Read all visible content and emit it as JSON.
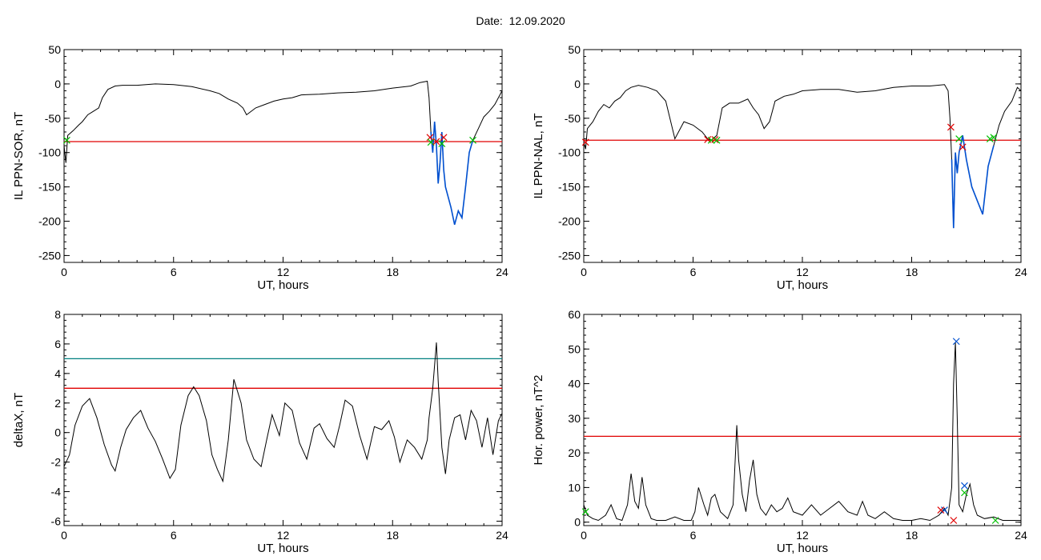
{
  "title": "Date:  12.09.2020",
  "colors": {
    "axis": "#000000",
    "trace": "#000000",
    "threshold": "#e00000",
    "upper_threshold": "#008080",
    "highlight": "#0050d0",
    "marker_red": "#e00000",
    "marker_green": "#00c000",
    "marker_blue": "#0050d0"
  },
  "chart_data": [
    {
      "type": "line",
      "ylabel": "IL PPN-SOR, nT",
      "xlabel": "UT, hours",
      "xlim": [
        0,
        24
      ],
      "ylim": [
        -260,
        50
      ],
      "xticks": [
        0,
        6,
        12,
        18,
        24
      ],
      "yticks": [
        50,
        0,
        -50,
        -100,
        -150,
        -200,
        -250
      ],
      "thresholds": [
        -84
      ],
      "highlight_range": [
        20.1,
        22.4
      ],
      "series": [
        {
          "x": [
            0,
            0.1,
            0.2,
            0.5,
            0.8,
            1.0,
            1.3,
            1.6,
            1.9,
            2.1,
            2.4,
            2.8,
            3.2,
            4,
            5,
            6,
            7,
            8,
            8.5,
            9,
            9.5,
            9.8,
            10.0,
            10.5,
            11,
            11.5,
            12,
            12.5,
            13,
            14,
            15,
            16,
            17,
            18,
            19,
            19.5,
            19.9,
            20.0,
            20.1,
            20.2,
            20.3,
            20.4,
            20.5,
            20.6,
            20.7,
            20.8,
            20.9,
            21.0,
            21.2,
            21.4,
            21.6,
            21.8,
            22.0,
            22.2,
            22.4,
            22.7,
            23,
            23.3,
            23.6,
            24
          ],
          "y": [
            -90,
            -115,
            -75,
            -68,
            -60,
            -55,
            -45,
            -40,
            -35,
            -20,
            -8,
            -3,
            -2,
            -2,
            0,
            -1,
            -4,
            -10,
            -14,
            -22,
            -28,
            -35,
            -45,
            -35,
            -30,
            -25,
            -22,
            -20,
            -16,
            -15,
            -13,
            -12,
            -10,
            -6,
            -3,
            2,
            4,
            -20,
            -70,
            -100,
            -55,
            -90,
            -145,
            -115,
            -70,
            -125,
            -150,
            -160,
            -180,
            -205,
            -185,
            -195,
            -150,
            -100,
            -82,
            -65,
            -48,
            -40,
            -30,
            -10
          ]
        }
      ],
      "markers": [
        {
          "x": 0.15,
          "y": -82,
          "color": "green"
        },
        {
          "x": 20.05,
          "y": -78,
          "color": "red"
        },
        {
          "x": 20.1,
          "y": -85,
          "color": "green"
        },
        {
          "x": 20.4,
          "y": -84,
          "color": "red"
        },
        {
          "x": 20.7,
          "y": -87,
          "color": "green"
        },
        {
          "x": 20.8,
          "y": -78,
          "color": "red"
        },
        {
          "x": 22.4,
          "y": -82,
          "color": "green"
        }
      ]
    },
    {
      "type": "line",
      "ylabel": "IL PPN-NAL, nT",
      "xlabel": "UT, hours",
      "xlim": [
        0,
        24
      ],
      "ylim": [
        -260,
        50
      ],
      "xticks": [
        0,
        6,
        12,
        18,
        24
      ],
      "yticks": [
        50,
        0,
        -50,
        -100,
        -150,
        -200,
        -250
      ],
      "thresholds": [
        -82
      ],
      "highlight_range": [
        20.2,
        22.5
      ],
      "series": [
        {
          "x": [
            0,
            0.1,
            0.2,
            0.5,
            0.8,
            1.1,
            1.4,
            1.7,
            2.0,
            2.3,
            2.6,
            3.0,
            3.5,
            4.0,
            4.5,
            5.0,
            5.5,
            6.0,
            6.5,
            6.8,
            7.0,
            7.3,
            7.6,
            8.0,
            8.5,
            9.0,
            9.3,
            9.6,
            9.9,
            10.2,
            10.5,
            11.0,
            11.5,
            12,
            13,
            14,
            15,
            16,
            17,
            18,
            19,
            19.8,
            20.0,
            20.1,
            20.2,
            20.3,
            20.4,
            20.5,
            20.6,
            20.8,
            21.0,
            21.3,
            21.6,
            21.9,
            22.2,
            22.5,
            22.8,
            23.1,
            23.5,
            23.8,
            24
          ],
          "y": [
            -85,
            -95,
            -65,
            -55,
            -40,
            -30,
            -35,
            -25,
            -20,
            -10,
            -5,
            -2,
            -5,
            -10,
            -25,
            -80,
            -55,
            -60,
            -70,
            -80,
            -82,
            -75,
            -35,
            -28,
            -28,
            -22,
            -35,
            -45,
            -65,
            -55,
            -25,
            -18,
            -15,
            -10,
            -8,
            -8,
            -12,
            -10,
            -5,
            -3,
            -3,
            -1,
            -10,
            -50,
            -110,
            -210,
            -100,
            -130,
            -100,
            -75,
            -110,
            -150,
            -170,
            -190,
            -120,
            -90,
            -60,
            -40,
            -25,
            -5,
            -10
          ]
        }
      ],
      "markers": [
        {
          "x": 0.1,
          "y": -85,
          "color": "red"
        },
        {
          "x": 6.8,
          "y": -81,
          "color": "red"
        },
        {
          "x": 7.0,
          "y": -82,
          "color": "green"
        },
        {
          "x": 7.2,
          "y": -81,
          "color": "red"
        },
        {
          "x": 7.3,
          "y": -82,
          "color": "green"
        },
        {
          "x": 20.15,
          "y": -63,
          "color": "red"
        },
        {
          "x": 20.6,
          "y": -80,
          "color": "green"
        },
        {
          "x": 20.8,
          "y": -92,
          "color": "red"
        },
        {
          "x": 22.3,
          "y": -80,
          "color": "green"
        },
        {
          "x": 22.5,
          "y": -78,
          "color": "green"
        }
      ]
    },
    {
      "type": "line",
      "ylabel": "deltaX, nT",
      "xlabel": "UT, hours",
      "xlim": [
        0,
        24
      ],
      "ylim": [
        -6.3,
        8
      ],
      "xticks": [
        0,
        6,
        12,
        18,
        24
      ],
      "yticks": [
        8,
        6,
        4,
        2,
        0,
        -2,
        -4,
        -6
      ],
      "thresholds": [
        5,
        3
      ],
      "series": [
        {
          "x": [
            0,
            0.3,
            0.6,
            1.0,
            1.4,
            1.8,
            2.2,
            2.6,
            2.8,
            3.1,
            3.4,
            3.8,
            4.2,
            4.6,
            5.0,
            5.4,
            5.8,
            6.1,
            6.4,
            6.8,
            7.1,
            7.4,
            7.8,
            8.1,
            8.4,
            8.7,
            9.0,
            9.3,
            9.7,
            10.0,
            10.4,
            10.8,
            11.1,
            11.4,
            11.8,
            12.1,
            12.5,
            12.9,
            13.3,
            13.7,
            14.0,
            14.4,
            14.8,
            15.1,
            15.4,
            15.8,
            16.2,
            16.6,
            17.0,
            17.4,
            17.8,
            18.1,
            18.4,
            18.8,
            19.2,
            19.6,
            19.9,
            20.0,
            20.2,
            20.4,
            20.5,
            20.7,
            20.9,
            21.1,
            21.4,
            21.7,
            22.0,
            22.3,
            22.6,
            22.9,
            23.2,
            23.5,
            23.8,
            24
          ],
          "y": [
            -2.3,
            -1.5,
            0.5,
            1.8,
            2.3,
            1.0,
            -0.8,
            -2.2,
            -2.6,
            -1.0,
            0.2,
            1.0,
            1.5,
            0.3,
            -0.6,
            -1.8,
            -3.1,
            -2.5,
            0.5,
            2.5,
            3.1,
            2.5,
            0.8,
            -1.5,
            -2.5,
            -3.3,
            -0.5,
            3.6,
            2.0,
            -0.5,
            -1.8,
            -2.3,
            -0.5,
            1.2,
            -0.2,
            2.0,
            1.5,
            -0.7,
            -1.8,
            0.3,
            0.6,
            -0.4,
            -1.0,
            0.5,
            2.2,
            1.8,
            -0.2,
            -1.8,
            0.4,
            0.2,
            0.8,
            -0.3,
            -2.0,
            -0.5,
            -1.0,
            -1.8,
            -0.5,
            1.0,
            3.0,
            6.1,
            3.5,
            -1.0,
            -2.8,
            -0.5,
            1.0,
            1.2,
            -0.5,
            1.5,
            0.8,
            -1.0,
            1.0,
            -1.5,
            0.8,
            1.3
          ]
        }
      ],
      "markers": []
    },
    {
      "type": "line",
      "ylabel": "Hor. power, nT^2",
      "xlabel": "UT, hours",
      "xlim": [
        0,
        24
      ],
      "ylim": [
        -1,
        60
      ],
      "xticks": [
        0,
        6,
        12,
        18,
        24
      ],
      "yticks": [
        60,
        50,
        40,
        30,
        20,
        10,
        0
      ],
      "thresholds": [
        24.8
      ],
      "series": [
        {
          "x": [
            0,
            0.2,
            0.5,
            0.8,
            1.2,
            1.5,
            1.8,
            2.1,
            2.4,
            2.6,
            2.8,
            3.0,
            3.2,
            3.4,
            3.7,
            4.0,
            4.5,
            5.0,
            5.5,
            5.9,
            6.1,
            6.3,
            6.6,
            6.8,
            7.0,
            7.2,
            7.5,
            7.9,
            8.2,
            8.4,
            8.5,
            8.7,
            8.9,
            9.1,
            9.3,
            9.5,
            9.7,
            10.0,
            10.3,
            10.6,
            10.9,
            11.2,
            11.5,
            12.0,
            12.5,
            13.0,
            13.5,
            14.0,
            14.5,
            15.0,
            15.3,
            15.6,
            16.0,
            16.5,
            17.0,
            17.5,
            18.0,
            18.5,
            19.0,
            19.5,
            19.8,
            20.0,
            20.2,
            20.3,
            20.4,
            20.5,
            20.6,
            20.8,
            21.0,
            21.2,
            21.4,
            21.6,
            22.0,
            22.5,
            23.0,
            23.3,
            23.6,
            24
          ],
          "y": [
            5,
            2,
            1,
            0.5,
            2,
            5,
            1,
            0.5,
            5,
            14,
            6,
            4,
            13,
            5,
            1,
            0.5,
            0.5,
            1.5,
            0.5,
            0.5,
            3,
            10,
            5,
            2,
            7,
            8,
            3,
            1,
            5,
            28,
            18,
            8,
            3,
            12,
            18,
            8,
            4,
            2,
            5,
            3,
            4,
            7,
            3,
            2,
            5,
            2,
            4,
            6,
            3,
            2,
            6,
            2,
            1,
            3,
            1,
            0.5,
            0.5,
            1,
            0.5,
            2,
            4,
            2,
            10,
            40,
            52,
            30,
            5,
            3,
            8,
            11,
            5,
            2,
            1,
            1.5,
            0.5,
            0.5,
            0.5,
            0.5
          ]
        }
      ],
      "markers": [
        {
          "x": 20.45,
          "y": 52.2,
          "color": "blue"
        },
        {
          "x": 20.9,
          "y": 10.5,
          "color": "blue"
        },
        {
          "x": 19.8,
          "y": 3.5,
          "color": "blue"
        },
        {
          "x": 19.6,
          "y": 3.5,
          "color": "red"
        },
        {
          "x": 20.3,
          "y": 0.5,
          "color": "red"
        },
        {
          "x": 20.9,
          "y": 8.5,
          "color": "green"
        },
        {
          "x": 0.1,
          "y": 3,
          "color": "green"
        },
        {
          "x": 22.6,
          "y": 0.5,
          "color": "green"
        }
      ]
    }
  ]
}
